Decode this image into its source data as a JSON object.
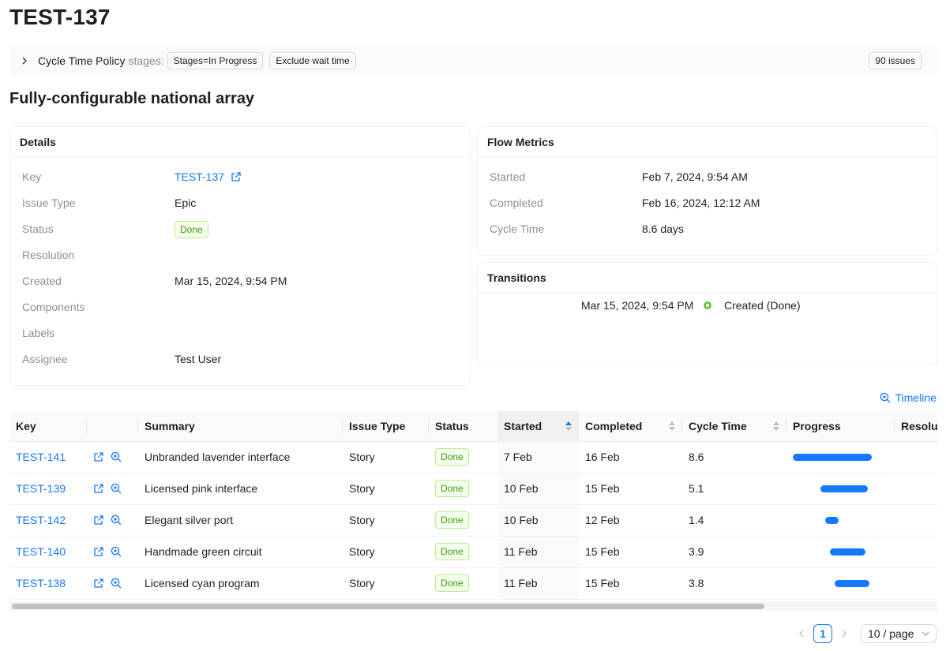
{
  "page": {
    "title": "TEST-137",
    "subtitle": "Fully-configurable national array"
  },
  "policy": {
    "title": "Cycle Time Policy",
    "stages_label": "stages:",
    "tags": [
      "Stages=In Progress",
      "Exclude wait time"
    ],
    "issues_count": "90 issues"
  },
  "details": {
    "title": "Details",
    "rows": [
      {
        "label": "Key",
        "value": "TEST-137"
      },
      {
        "label": "Issue Type",
        "value": "Epic"
      },
      {
        "label": "Status",
        "value": "Done"
      },
      {
        "label": "Resolution",
        "value": ""
      },
      {
        "label": "Created",
        "value": "Mar 15, 2024, 9:54 PM"
      },
      {
        "label": "Components",
        "value": ""
      },
      {
        "label": "Labels",
        "value": ""
      },
      {
        "label": "Assignee",
        "value": "Test User"
      }
    ]
  },
  "flow": {
    "title": "Flow Metrics",
    "rows": [
      {
        "label": "Started",
        "value": "Feb 7, 2024, 9:54 AM"
      },
      {
        "label": "Completed",
        "value": "Feb 16, 2024, 12:12 AM"
      },
      {
        "label": "Cycle Time",
        "value": "8.6 days"
      }
    ]
  },
  "transitions": {
    "title": "Transitions",
    "items": [
      {
        "time": "Mar 15, 2024, 9:54 PM",
        "label": "Created (Done)"
      }
    ]
  },
  "timeline_link": "Timeline",
  "table": {
    "columns": [
      "Key",
      "",
      "Summary",
      "Issue Type",
      "Status",
      "Started",
      "Completed",
      "Cycle Time",
      "Progress",
      "Resolu"
    ],
    "rows": [
      {
        "key": "TEST-141",
        "summary": "Unbranded lavender interface",
        "type": "Story",
        "status": "Done",
        "started": "7 Feb",
        "completed": "16 Feb",
        "cycle": "8.6",
        "progress": {
          "start": 0.0,
          "length": 1.0
        }
      },
      {
        "key": "TEST-139",
        "summary": "Licensed pink interface",
        "type": "Story",
        "status": "Done",
        "started": "10 Feb",
        "completed": "15 Feb",
        "cycle": "5.1",
        "progress": {
          "start": 0.35,
          "length": 0.6
        }
      },
      {
        "key": "TEST-142",
        "summary": "Elegant silver port",
        "type": "Story",
        "status": "Done",
        "started": "10 Feb",
        "completed": "12 Feb",
        "cycle": "1.4",
        "progress": {
          "start": 0.41,
          "length": 0.17
        }
      },
      {
        "key": "TEST-140",
        "summary": "Handmade green circuit",
        "type": "Story",
        "status": "Done",
        "started": "11 Feb",
        "completed": "15 Feb",
        "cycle": "3.9",
        "progress": {
          "start": 0.47,
          "length": 0.45
        }
      },
      {
        "key": "TEST-138",
        "summary": "Licensed cyan program",
        "type": "Story",
        "status": "Done",
        "started": "11 Feb",
        "completed": "15 Feb",
        "cycle": "3.8",
        "progress": {
          "start": 0.53,
          "length": 0.44
        }
      }
    ]
  },
  "pagination": {
    "current": "1",
    "page_size": "10 / page"
  },
  "colors": {
    "accent": "#1677ff",
    "done_green": "#389e0d",
    "done_bg": "#f6ffed",
    "done_border": "#b7eb8f"
  },
  "icons": [
    "chevron-right-icon",
    "external-link-icon",
    "zoom-in-icon",
    "sort-icon",
    "chevron-left-icon",
    "chevron-down-icon",
    "status-dot-icon"
  ]
}
